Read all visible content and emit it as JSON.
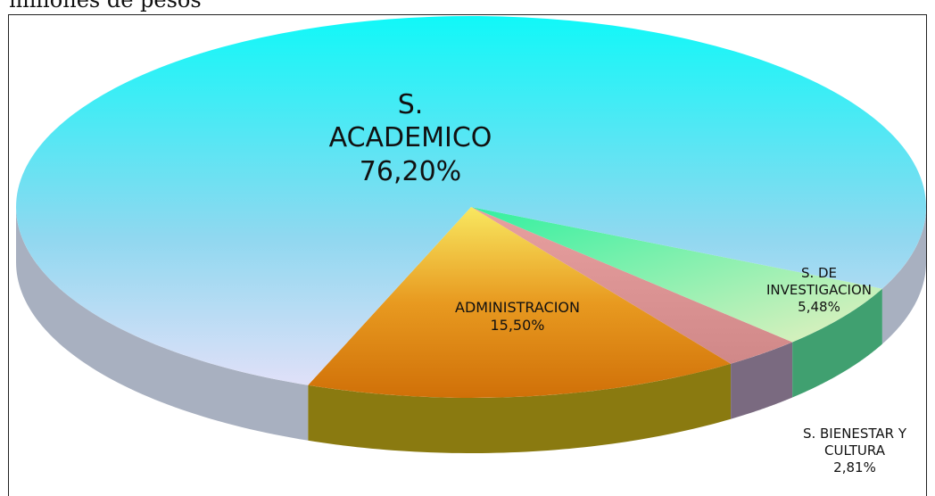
{
  "chart_data": {
    "type": "pie",
    "title": "millones de pesos",
    "categories": [
      "ADMINISTRACION",
      "S. BIENESTAR Y CULTURA",
      "S. DE INVESTIGACION",
      "S. ACADEMICO"
    ],
    "values": [
      15.5,
      2.81,
      5.48,
      76.2
    ],
    "value_labels": [
      "15,50%",
      "2,81%",
      "5,48%",
      "76,20%"
    ],
    "colors": [
      "#e89a20",
      "#d89090",
      "#50f0a0",
      "#40e8f4"
    ]
  }
}
